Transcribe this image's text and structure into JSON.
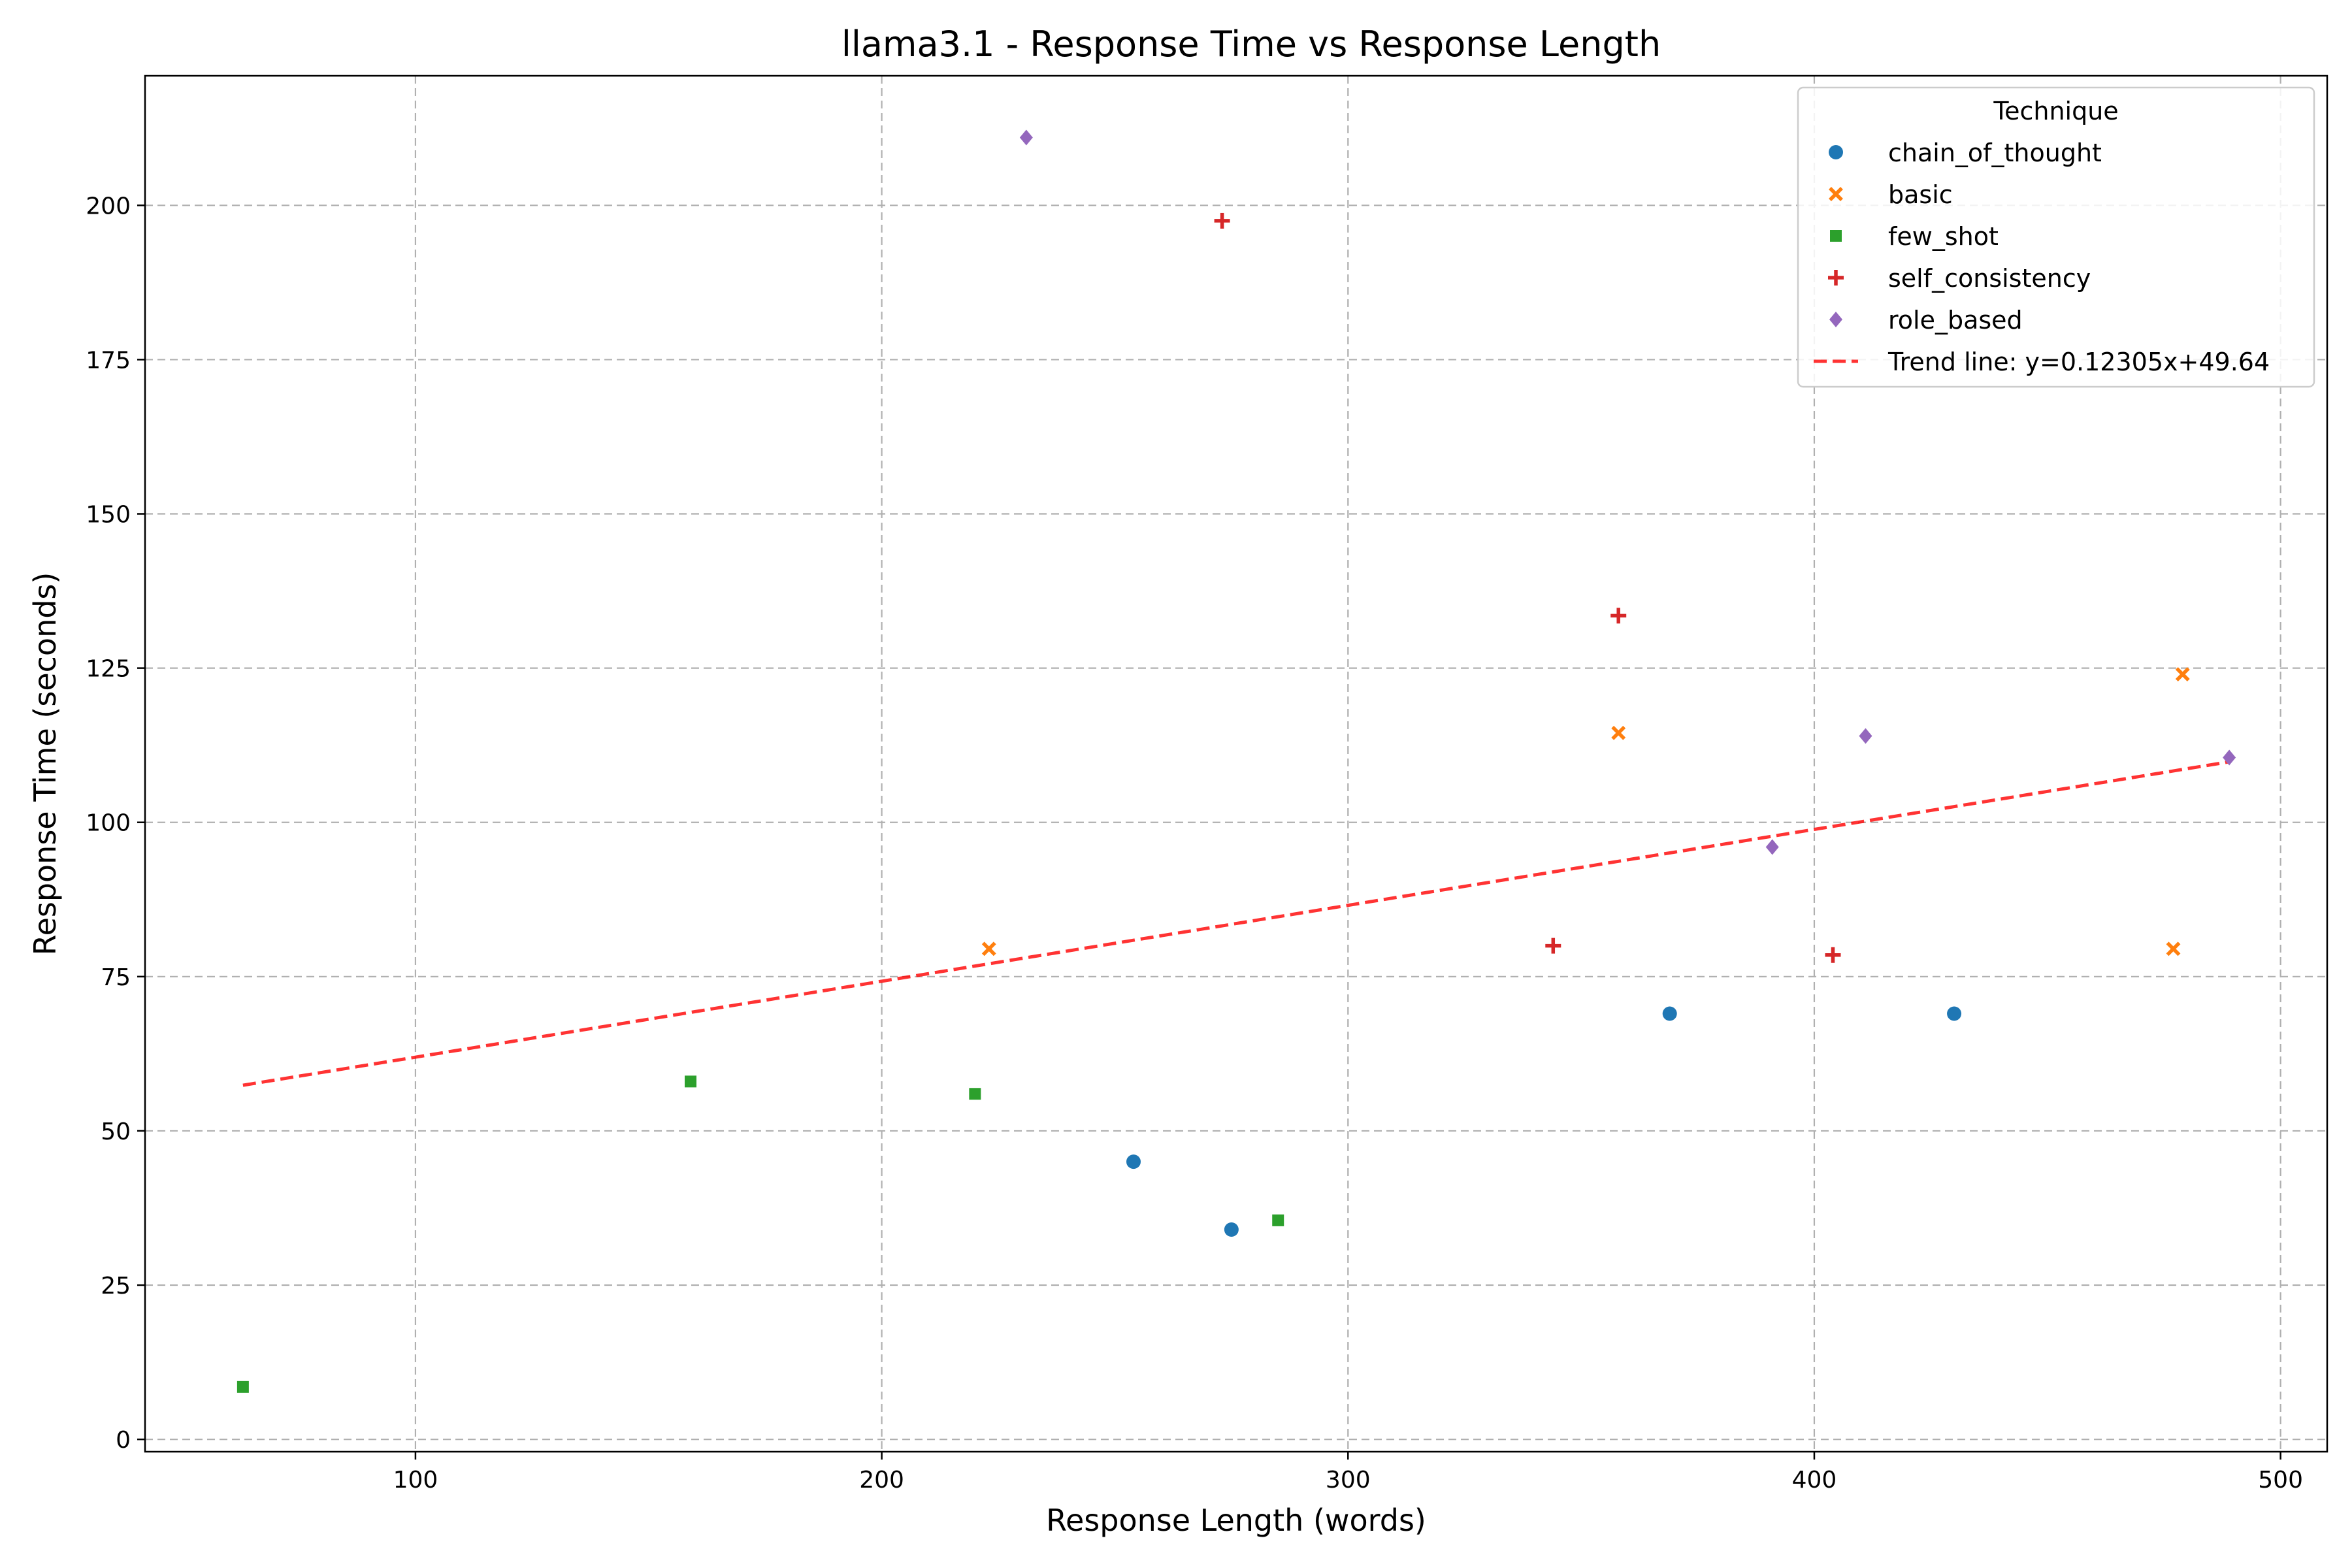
{
  "chart_data": {
    "type": "scatter",
    "title": "llama3.1 - Response Time vs Response Length",
    "xlabel": "Response Length (words)",
    "ylabel": "Response Time (seconds)",
    "xlim": [
      42,
      510
    ],
    "ylim": [
      -2,
      221
    ],
    "x_ticks": [
      100,
      200,
      300,
      400,
      500
    ],
    "y_ticks": [
      0,
      25,
      50,
      75,
      100,
      125,
      150,
      175,
      200
    ],
    "grid": true,
    "legend": {
      "title": "Technique",
      "placement": "top-right"
    },
    "series": [
      {
        "name": "chain_of_thought",
        "marker": "circle",
        "color": "#1f77b4",
        "points": [
          [
            254,
            45
          ],
          [
            275,
            34
          ],
          [
            369,
            69
          ],
          [
            430,
            69
          ]
        ]
      },
      {
        "name": "basic",
        "marker": "x",
        "color": "#ff7f0e",
        "points": [
          [
            223,
            79.5
          ],
          [
            358,
            114.5
          ],
          [
            477,
            79.5
          ],
          [
            479,
            124
          ]
        ]
      },
      {
        "name": "few_shot",
        "marker": "square",
        "color": "#2ca02c",
        "points": [
          [
            63,
            8.5
          ],
          [
            159,
            58
          ],
          [
            220,
            56
          ],
          [
            285,
            35.5
          ]
        ]
      },
      {
        "name": "self_consistency",
        "marker": "plus",
        "color": "#d62728",
        "points": [
          [
            273,
            197.5
          ],
          [
            344,
            80
          ],
          [
            358,
            133.5
          ],
          [
            404,
            78.5
          ]
        ]
      },
      {
        "name": "role_based",
        "marker": "diamond",
        "color": "#9467bd",
        "points": [
          [
            231,
            211
          ],
          [
            391,
            96
          ],
          [
            411,
            114
          ],
          [
            489,
            110.5
          ]
        ]
      }
    ],
    "trend_line": {
      "name": "Trend line: y=0.12305x+49.64",
      "slope": 0.12305,
      "intercept": 49.64,
      "x_range": [
        63,
        489
      ],
      "color": "#ff0000",
      "style": "dashed"
    }
  }
}
